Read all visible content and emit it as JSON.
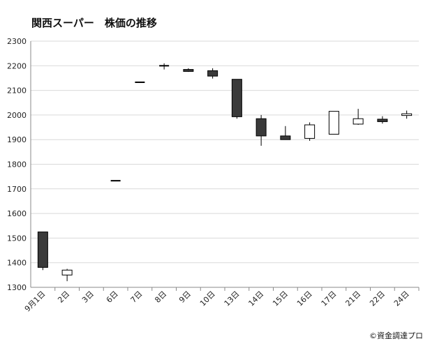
{
  "chart_data": {
    "type": "candlestick",
    "title": "関西スーパー　株価の推移",
    "categories": [
      "9月1日",
      "2日",
      "3日",
      "6日",
      "7日",
      "8日",
      "9日",
      "10日",
      "13日",
      "14日",
      "15日",
      "16日",
      "17日",
      "21日",
      "22日",
      "24日"
    ],
    "ylim": [
      1300,
      2300
    ],
    "yticks": [
      1300,
      1400,
      1500,
      1600,
      1700,
      1800,
      1900,
      2000,
      2100,
      2200,
      2300
    ],
    "grid": true,
    "candles": [
      {
        "date": "9月1日",
        "open": 1525,
        "close": 1381,
        "high": 1525,
        "low": 1370
      },
      {
        "date": "2日",
        "open": 1350,
        "close": 1370,
        "high": 1375,
        "low": 1325
      },
      {
        "date": "3日",
        "open": null,
        "close": null,
        "high": null,
        "low": null
      },
      {
        "date": "6日",
        "open": 1733,
        "close": 1733,
        "high": 1733,
        "low": 1733
      },
      {
        "date": "7日",
        "open": 2133,
        "close": 2133,
        "high": 2133,
        "low": 2133
      },
      {
        "date": "8日",
        "open": 2200,
        "close": 2200,
        "high": 2210,
        "low": 2185
      },
      {
        "date": "9日",
        "open": 2185,
        "close": 2177,
        "high": 2190,
        "low": 2175
      },
      {
        "date": "10日",
        "open": 2180,
        "close": 2158,
        "high": 2190,
        "low": 2148
      },
      {
        "date": "13日",
        "open": 2145,
        "close": 1993,
        "high": 2145,
        "low": 1985
      },
      {
        "date": "14日",
        "open": 1985,
        "close": 1915,
        "high": 2000,
        "low": 1875
      },
      {
        "date": "15日",
        "open": 1915,
        "close": 1900,
        "high": 1955,
        "low": 1900
      },
      {
        "date": "16日",
        "open": 1905,
        "close": 1960,
        "high": 1970,
        "low": 1895
      },
      {
        "date": "17日",
        "open": 1922,
        "close": 2015,
        "high": 2015,
        "low": 1922
      },
      {
        "date": "21日",
        "open": 1963,
        "close": 1985,
        "high": 2025,
        "low": 1960
      },
      {
        "date": "22日",
        "open": 1983,
        "close": 1973,
        "high": 1995,
        "low": 1965
      },
      {
        "date": "24日",
        "open": 1998,
        "close": 2005,
        "high": 2018,
        "low": 1985
      }
    ]
  },
  "credit": "©資金調達プロ",
  "colors": {
    "down": "#3a3a3a",
    "up": "#ffffff",
    "stroke": "#000000",
    "grid": "#d9d9d9"
  }
}
